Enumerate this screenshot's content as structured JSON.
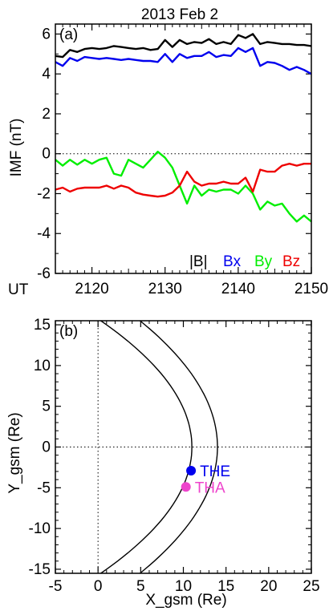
{
  "chart_data": [
    {
      "type": "line",
      "panel_label": "(a)",
      "title": "2013 Feb 2",
      "xlabel": "UT",
      "ylabel": "IMF (nT)",
      "xlim": [
        2115,
        2150
      ],
      "ylim": [
        -6,
        6.5
      ],
      "xticks": [
        "2120",
        "2130",
        "2140",
        "2150"
      ],
      "yticks": [
        "-6",
        "-4",
        "-2",
        "0",
        "2",
        "4",
        "6"
      ],
      "zero_line": "dotted",
      "legend_placement": "bottom-right",
      "series": [
        {
          "name": "|B|",
          "color": "#000000",
          "x": [
            2115,
            2116,
            2117,
            2118,
            2119,
            2120,
            2121,
            2122,
            2123,
            2124,
            2125,
            2126,
            2127,
            2128,
            2129,
            2130,
            2131,
            2132,
            2133,
            2134,
            2135,
            2136,
            2137,
            2138,
            2139,
            2140,
            2141,
            2142,
            2143,
            2144,
            2145,
            2146,
            2147,
            2148,
            2149,
            2150
          ],
          "y": [
            4.9,
            4.85,
            5.2,
            5.1,
            5.25,
            5.3,
            5.25,
            5.3,
            5.4,
            5.35,
            5.3,
            5.25,
            5.3,
            5.2,
            5.25,
            5.7,
            5.35,
            5.7,
            5.5,
            5.6,
            5.55,
            5.75,
            5.5,
            5.6,
            5.5,
            5.95,
            5.8,
            6.0,
            5.5,
            5.6,
            5.55,
            5.5,
            5.5,
            5.45,
            5.45,
            5.4
          ]
        },
        {
          "name": "Bx",
          "color": "#0000ee",
          "x": [
            2115,
            2116,
            2117,
            2118,
            2119,
            2120,
            2121,
            2122,
            2123,
            2124,
            2125,
            2126,
            2127,
            2128,
            2129,
            2130,
            2131,
            2132,
            2133,
            2134,
            2135,
            2136,
            2137,
            2138,
            2139,
            2140,
            2141,
            2142,
            2143,
            2144,
            2145,
            2146,
            2147,
            2148,
            2149,
            2150
          ],
          "y": [
            4.6,
            4.4,
            4.8,
            4.65,
            4.85,
            4.8,
            4.75,
            4.8,
            4.75,
            4.7,
            4.75,
            4.7,
            4.65,
            4.65,
            4.6,
            5.0,
            4.6,
            5.0,
            4.8,
            4.9,
            4.9,
            5.1,
            4.85,
            4.95,
            4.9,
            5.3,
            5.1,
            5.3,
            4.4,
            4.6,
            4.55,
            4.4,
            4.2,
            4.35,
            4.2,
            4.0
          ]
        },
        {
          "name": "By",
          "color": "#00ee00",
          "x": [
            2115,
            2116,
            2117,
            2118,
            2119,
            2120,
            2121,
            2122,
            2123,
            2124,
            2125,
            2126,
            2127,
            2128,
            2129,
            2130,
            2131,
            2132,
            2133,
            2134,
            2135,
            2136,
            2137,
            2138,
            2139,
            2140,
            2141,
            2142,
            2143,
            2144,
            2145,
            2146,
            2147,
            2148,
            2149,
            2150
          ],
          "y": [
            -0.3,
            -0.6,
            -0.3,
            -0.55,
            -0.3,
            -0.5,
            -0.3,
            -0.2,
            -1.0,
            -1.1,
            -0.3,
            -0.5,
            -0.7,
            -0.3,
            0.1,
            -0.2,
            -0.7,
            -1.6,
            -2.5,
            -1.6,
            -2.1,
            -1.8,
            -1.9,
            -1.8,
            -1.8,
            -2.0,
            -1.6,
            -2.0,
            -2.8,
            -2.4,
            -2.6,
            -2.5,
            -3.0,
            -3.4,
            -3.1,
            -3.4
          ]
        },
        {
          "name": "Bz",
          "color": "#ee0000",
          "x": [
            2115,
            2116,
            2117,
            2118,
            2119,
            2120,
            2121,
            2122,
            2123,
            2124,
            2125,
            2126,
            2127,
            2128,
            2129,
            2130,
            2131,
            2132,
            2133,
            2134,
            2135,
            2136,
            2137,
            2138,
            2139,
            2140,
            2141,
            2142,
            2143,
            2144,
            2145,
            2146,
            2147,
            2148,
            2149,
            2150
          ],
          "y": [
            -1.8,
            -1.7,
            -1.9,
            -1.75,
            -1.7,
            -1.7,
            -1.7,
            -1.6,
            -1.75,
            -1.6,
            -1.7,
            -1.95,
            -2.05,
            -2.1,
            -2.15,
            -2.1,
            -1.95,
            -1.6,
            -0.9,
            -1.4,
            -1.6,
            -1.5,
            -1.5,
            -1.4,
            -1.5,
            -1.5,
            -1.2,
            -1.9,
            -0.8,
            -0.9,
            -0.9,
            -0.6,
            -0.5,
            -0.6,
            -0.5,
            -0.5
          ]
        }
      ]
    },
    {
      "type": "scatter",
      "panel_label": "(b)",
      "xlabel": "X_gsm (Re)",
      "ylabel": "Y_gsm (Re)",
      "xlim": [
        -5,
        25
      ],
      "ylim": [
        -15.5,
        15.5
      ],
      "xticks": [
        "-5",
        "0",
        "5",
        "10",
        "15",
        "20",
        "25"
      ],
      "yticks": [
        "-15",
        "-10",
        "-5",
        "0",
        "5",
        "10",
        "15"
      ],
      "reference_lines": "dotted x=0 and y=0",
      "boundaries": [
        {
          "nose_x": 11,
          "x_at_y15": 1.0
        },
        {
          "nose_x": 14,
          "x_at_y15": 5.5
        }
      ],
      "points": [
        {
          "name": "THE",
          "x": 10.9,
          "y": -2.9,
          "color": "#0000ee"
        },
        {
          "name": "THA",
          "x": 10.3,
          "y": -4.9,
          "color": "#ee44cc"
        }
      ]
    }
  ]
}
